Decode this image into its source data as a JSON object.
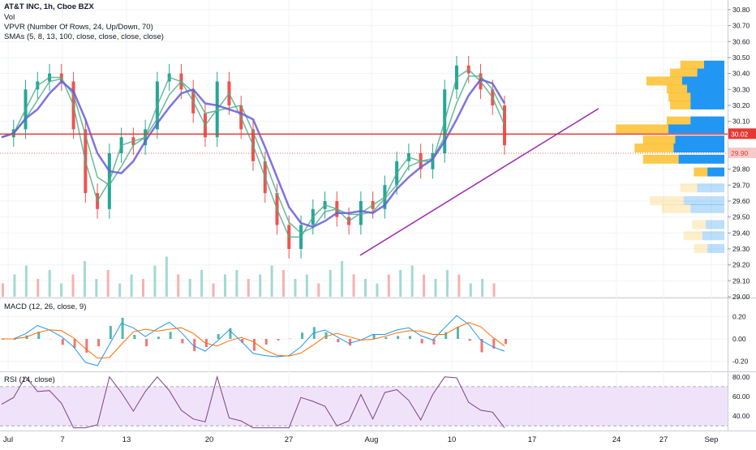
{
  "header": {
    "symbol_line": "AT&T INC, 1h, Cboe BZX",
    "vol_line": "Vol",
    "vpvr_line": "VPVR (Number Of Rows, 24, Up/Down, 70)",
    "sma_line": "SMAs (5, 8, 13, 100, close, close, close, close)"
  },
  "panes": {
    "macd_label": "MACD (12, 26, close, 9)",
    "rsi_label": "RSI (14, close)"
  },
  "colors": {
    "up": "#26a69a",
    "down": "#ef5350",
    "sma_slow": "#6a5bd8",
    "sma_fast": "#4caf87",
    "vpvr_up": "#2196f3",
    "vpvr_down": "#fbc02d",
    "support": "#e53935",
    "trendline": "#9c27b0",
    "rsi_line": "#7b3f8c",
    "rsi_band": "#e9d7f7",
    "macd_line": "#2196f3",
    "signal_line": "#ff6d00"
  },
  "chart_data": [
    {
      "type": "candlestick",
      "title": "AT&T INC, 1h, Cboe BZX",
      "x_ticks": [
        "Jul",
        "7",
        "13",
        "20",
        "27",
        "Aug",
        "10",
        "17",
        "24",
        "27",
        "Sep"
      ],
      "y_ticks": [
        "30.80",
        "30.70",
        "30.60",
        "30.50",
        "30.40",
        "30.30",
        "30.20",
        "30.10",
        "30.02",
        "29.90",
        "29.80",
        "29.70",
        "29.60",
        "29.50",
        "29.40",
        "29.30",
        "29.20",
        "29.10",
        "29.00"
      ],
      "ylim": [
        29.0,
        30.82
      ],
      "horizontal_line": 30.02,
      "price_label_red": "30.02",
      "price_label_last": "29.90",
      "trendline": {
        "from": [
          "Jul 31",
          29.26
        ],
        "to": [
          "Aug 20",
          30.18
        ]
      },
      "approx_close_path": [
        30.0,
        30.05,
        30.3,
        30.35,
        30.4,
        30.35,
        30.05,
        29.65,
        29.55,
        29.9,
        30.0,
        29.95,
        30.05,
        30.35,
        30.4,
        30.3,
        30.15,
        30.0,
        30.35,
        30.2,
        30.05,
        29.85,
        29.65,
        29.45,
        29.3,
        29.45,
        29.55,
        29.6,
        29.5,
        29.45,
        29.6,
        29.55,
        29.7,
        29.85,
        29.9,
        29.8,
        29.9,
        30.3,
        30.45,
        30.4,
        30.3,
        30.2,
        29.95
      ],
      "vpvr_rows": [
        {
          "price": 30.45,
          "up": 0.24,
          "down": 0.28
        },
        {
          "price": 30.4,
          "up": 0.32,
          "down": 0.32
        },
        {
          "price": 30.35,
          "up": 0.5,
          "down": 0.42
        },
        {
          "price": 30.3,
          "up": 0.44,
          "down": 0.24
        },
        {
          "price": 30.25,
          "up": 0.4,
          "down": 0.26
        },
        {
          "price": 30.2,
          "up": 0.4,
          "down": 0.24
        },
        {
          "price": 30.1,
          "up": 0.4,
          "down": 0.28
        },
        {
          "price": 30.05,
          "up": 0.66,
          "down": 0.62
        },
        {
          "price": 29.98,
          "up": 0.58,
          "down": 0.38
        },
        {
          "price": 29.93,
          "up": 0.6,
          "down": 0.46
        },
        {
          "price": 29.86,
          "up": 0.54,
          "down": 0.42
        },
        {
          "price": 29.78,
          "up": 0.2,
          "down": 0.16
        },
        {
          "price": 29.68,
          "up": 0.32,
          "down": 0.2
        },
        {
          "price": 29.6,
          "up": 0.48,
          "down": 0.4
        },
        {
          "price": 29.55,
          "up": 0.4,
          "down": 0.34
        },
        {
          "price": 29.45,
          "up": 0.22,
          "down": 0.16
        },
        {
          "price": 29.38,
          "up": 0.26,
          "down": 0.22
        },
        {
          "price": 29.3,
          "up": 0.2,
          "down": 0.16
        }
      ]
    },
    {
      "type": "bar",
      "title": "Vol",
      "series": [
        {
          "values": [
            0.3,
            0.5,
            0.7,
            0.4,
            0.6,
            0.3,
            0.5,
            0.8,
            0.4,
            0.6,
            0.3,
            0.5,
            0.4,
            0.7,
            0.9,
            0.5,
            0.4,
            0.6,
            0.3,
            0.5,
            0.6,
            0.4,
            0.5,
            0.7,
            0.6,
            0.4,
            0.5,
            0.3,
            0.6,
            0.8,
            0.5,
            0.4,
            0.3,
            0.5,
            0.6,
            0.7,
            0.5,
            0.4,
            0.6,
            0.5,
            0.3,
            0.4,
            0.3
          ]
        }
      ]
    },
    {
      "type": "line",
      "title": "MACD (12, 26, close, 9)",
      "y_ticks": [
        "0.20",
        "0.00",
        "-0.20"
      ],
      "ylim": [
        -0.24,
        0.24
      ]
    },
    {
      "type": "line",
      "title": "RSI (14, close)",
      "y_ticks": [
        "80.00",
        "60.00",
        "40.00"
      ],
      "ylim": [
        26,
        84
      ],
      "band": [
        30,
        70
      ]
    }
  ]
}
